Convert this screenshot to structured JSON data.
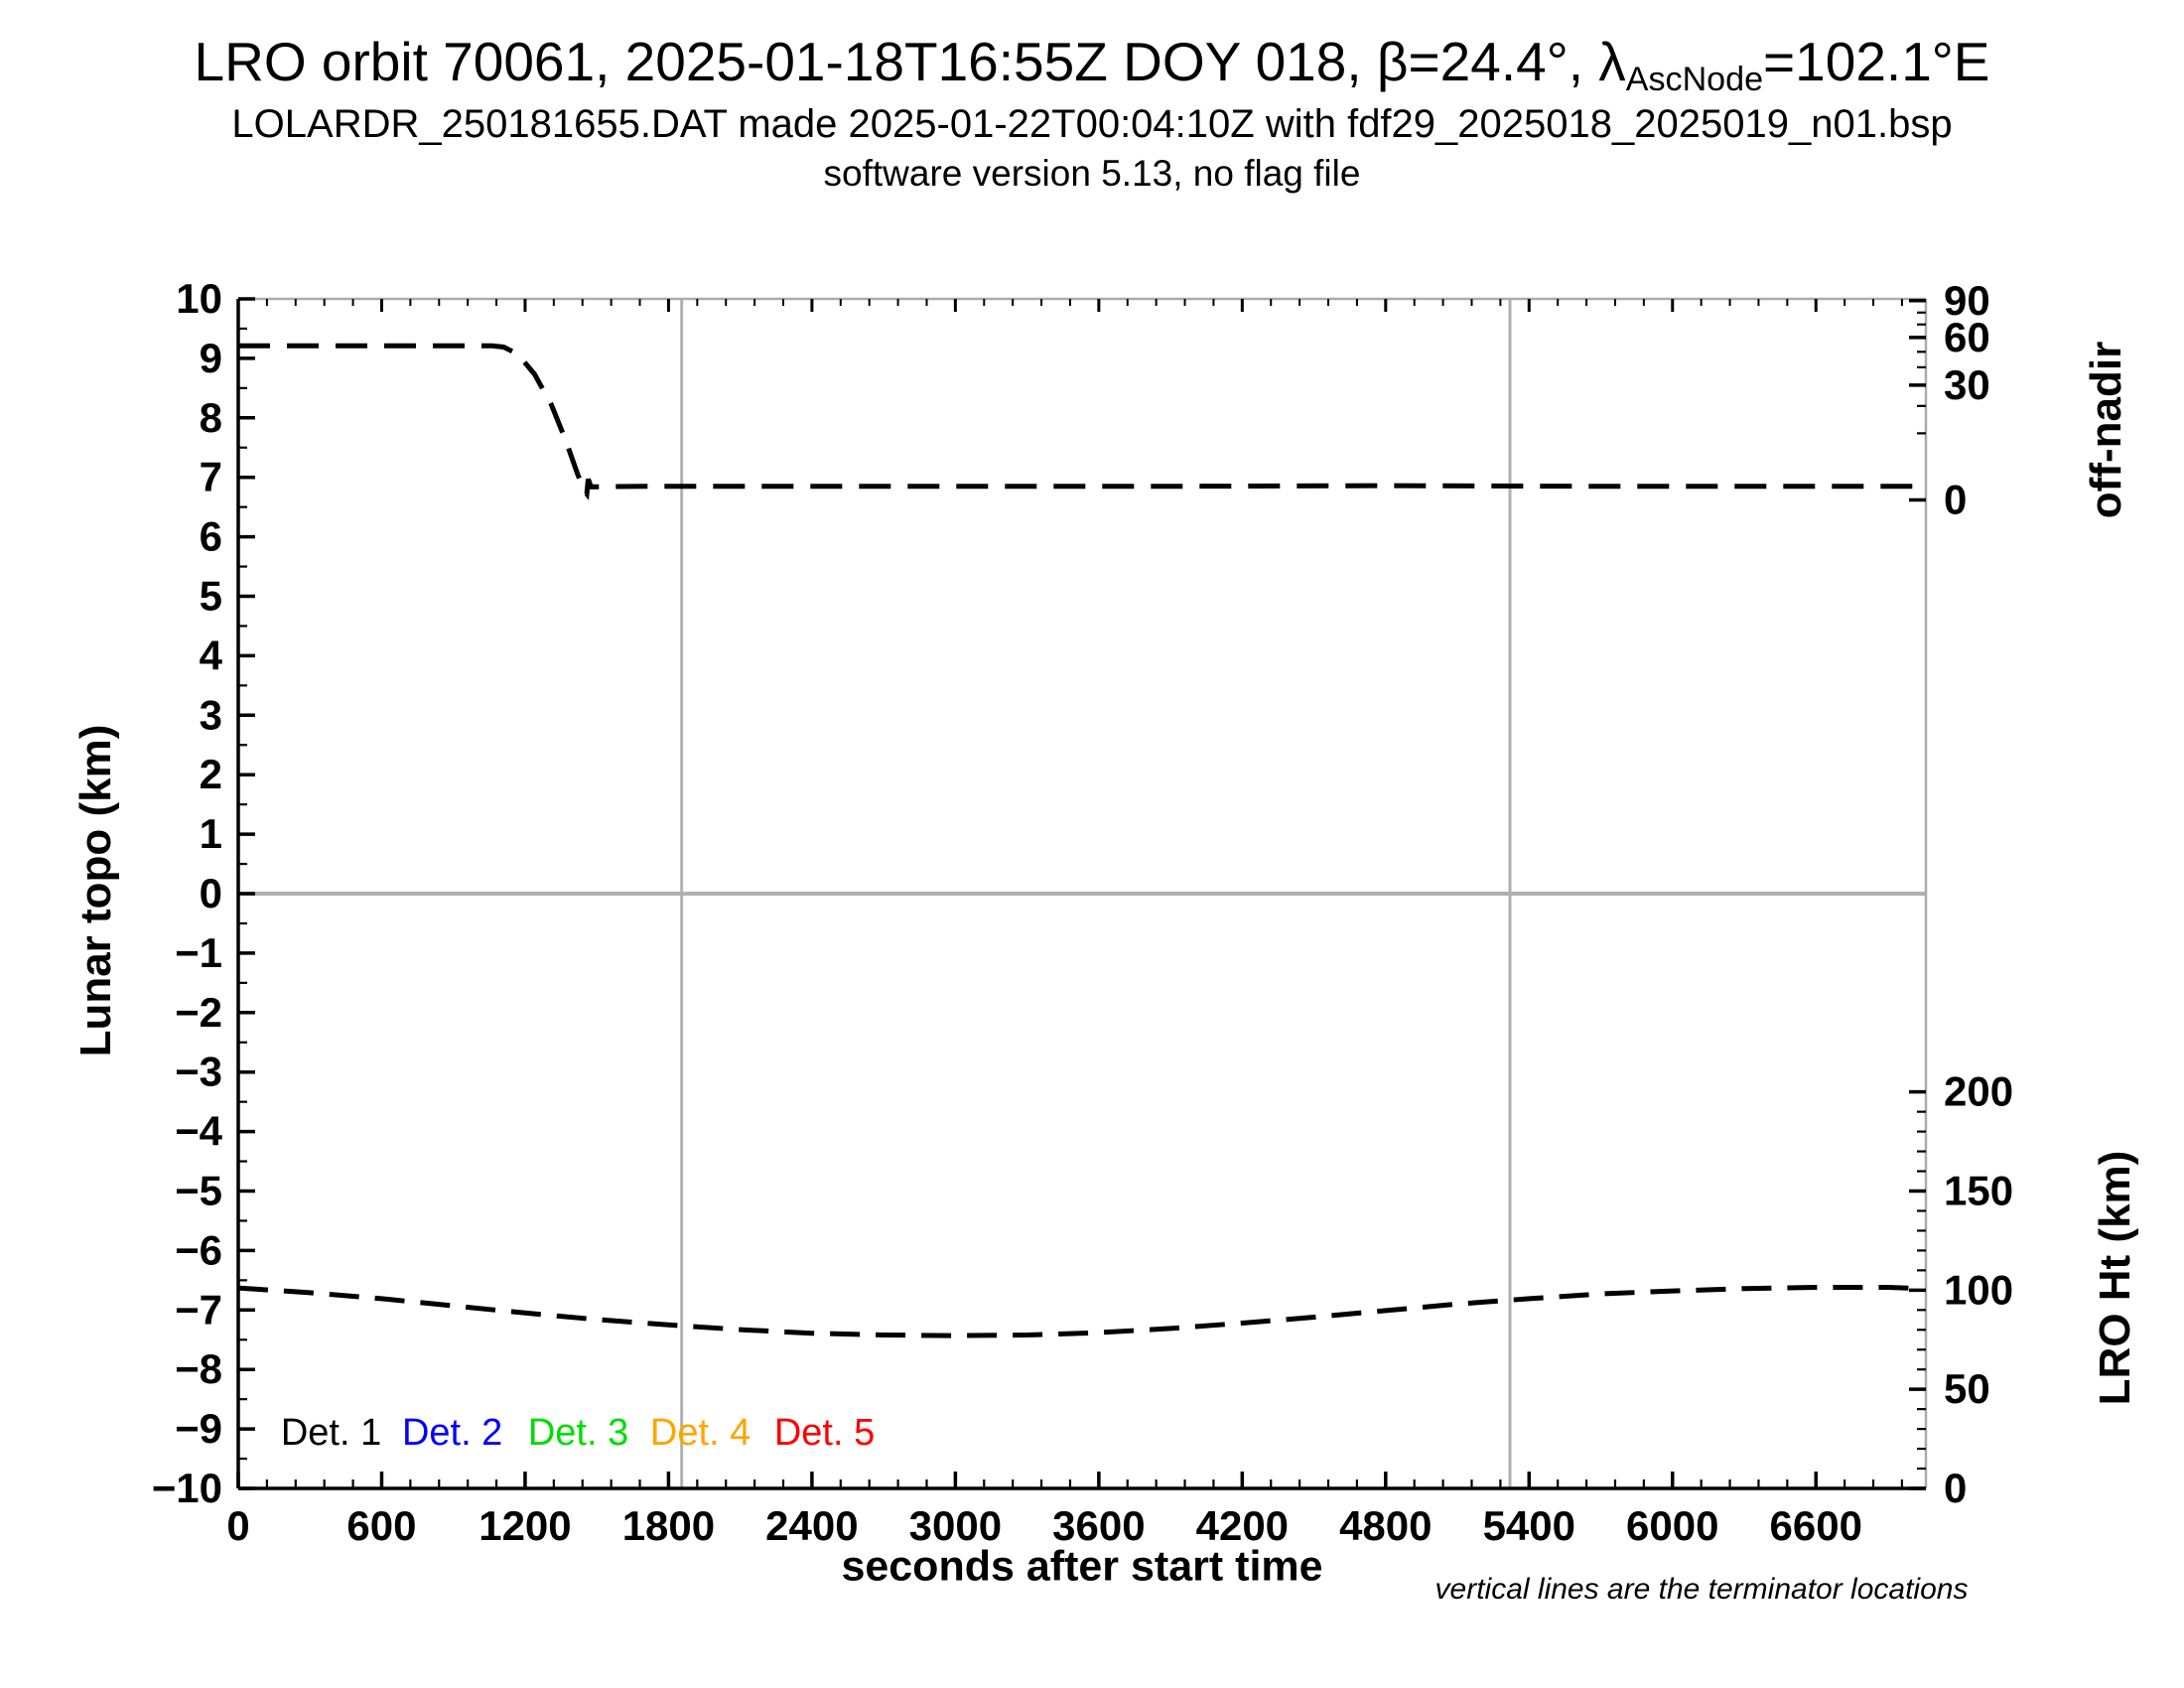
{
  "header": {
    "title_prefix": "LRO orbit 70061, 2025-01-18T16:55Z DOY 018, β=24.4°, λ",
    "title_subscript": "AscNode",
    "title_suffix": "=102.1°E",
    "subtitle": "LOLARDR_250181655.DAT made 2025-01-22T00:04:10Z with fdf29_2025018_2025019_n01.bsp",
    "software_line": "software version 5.13, no flag file"
  },
  "chart_data": {
    "type": "line",
    "x_axis": {
      "label": "seconds after start time",
      "min": 0,
      "max": 7060,
      "major_tick_step": 600,
      "minor_tick_step": 120,
      "tick_labels": [
        0,
        600,
        1200,
        1800,
        2400,
        3000,
        3600,
        4200,
        4800,
        5400,
        6000,
        6600
      ]
    },
    "y_left": {
      "label": "Lunar topo (km)",
      "min": -10,
      "max": 10,
      "major_step": 1,
      "minor_step": 0.5
    },
    "y_right_offnadir": {
      "label": "off-nadir",
      "scale": "sqrt-of-angle",
      "major_ticks": [
        {
          "angle": 90,
          "topo": 9.97
        },
        {
          "angle": 60,
          "topo": 9.35
        },
        {
          "angle": 30,
          "topo": 8.55
        },
        {
          "angle": 0,
          "topo": 6.62
        }
      ],
      "minor_ticks": [
        {
          "angle": 80,
          "topo": 9.77
        },
        {
          "angle": 70,
          "topo": 9.57
        },
        {
          "angle": 50,
          "topo": 9.11
        },
        {
          "angle": 40,
          "topo": 8.85
        },
        {
          "angle": 20,
          "topo": 8.2
        },
        {
          "angle": 10,
          "topo": 7.74
        }
      ]
    },
    "y_right_height": {
      "label": "LRO Ht (km)",
      "km_per_unit": 30,
      "max_km": 200,
      "major_step_km": 50,
      "minor_step_km": 10,
      "tick_labels": [
        0,
        50,
        100,
        150,
        200
      ]
    },
    "reference": {
      "zero_line_topo": 0,
      "terminator_times_sec": [
        1855,
        5320
      ],
      "note": "vertical lines are the terminator locations",
      "line_color": "#b0b0b0"
    },
    "series": [
      {
        "name": "spacecraft off-nadir angle",
        "color": "#000000",
        "dash": "32 17",
        "axis": "off-nadir (right top)",
        "approx_degrees_initial": 54,
        "approx_degrees_final": 0.5,
        "points_topo": [
          [
            0,
            9.21
          ],
          [
            300,
            9.21
          ],
          [
            600,
            9.21
          ],
          [
            900,
            9.21
          ],
          [
            1060,
            9.21
          ],
          [
            1110,
            9.19
          ],
          [
            1170,
            9.07
          ],
          [
            1240,
            8.73
          ],
          [
            1310,
            8.22
          ],
          [
            1370,
            7.62
          ],
          [
            1420,
            7.05
          ],
          [
            1448,
            6.77
          ],
          [
            1458,
            6.72
          ],
          [
            1464,
            6.97
          ],
          [
            1476,
            6.84
          ],
          [
            1700,
            6.85
          ],
          [
            2400,
            6.85
          ],
          [
            3200,
            6.85
          ],
          [
            4000,
            6.85
          ],
          [
            4800,
            6.86
          ],
          [
            5600,
            6.85
          ],
          [
            6400,
            6.85
          ],
          [
            7040,
            6.85
          ]
        ]
      },
      {
        "name": "LRO height above surface",
        "color": "#000000",
        "dash": "30 16",
        "axis": "LRO Ht km (right bottom)",
        "approx_km_start": 101,
        "approx_km_min": 77,
        "approx_km_end": 101,
        "points_topo": [
          [
            0,
            -6.63
          ],
          [
            300,
            -6.71
          ],
          [
            600,
            -6.81
          ],
          [
            900,
            -6.93
          ],
          [
            1200,
            -7.05
          ],
          [
            1500,
            -7.16
          ],
          [
            1800,
            -7.25
          ],
          [
            2100,
            -7.33
          ],
          [
            2400,
            -7.39
          ],
          [
            2700,
            -7.42
          ],
          [
            3000,
            -7.43
          ],
          [
            3300,
            -7.42
          ],
          [
            3600,
            -7.38
          ],
          [
            3900,
            -7.31
          ],
          [
            4200,
            -7.22
          ],
          [
            4500,
            -7.12
          ],
          [
            4800,
            -7.01
          ],
          [
            5100,
            -6.9
          ],
          [
            5400,
            -6.81
          ],
          [
            5700,
            -6.73
          ],
          [
            6000,
            -6.68
          ],
          [
            6300,
            -6.64
          ],
          [
            6600,
            -6.62
          ],
          [
            6900,
            -6.62
          ],
          [
            7040,
            -6.64
          ]
        ]
      }
    ],
    "legend": {
      "y_topo": -9.05,
      "items": [
        {
          "label": "Det. 1",
          "color": "#000000",
          "t": 178
        },
        {
          "label": "Det. 2",
          "color": "#0000ff",
          "t": 685
        },
        {
          "label": "Det. 3",
          "color": "#00dd00",
          "t": 1212
        },
        {
          "label": "Det. 4",
          "color": "#ffa500",
          "t": 1723
        },
        {
          "label": "Det. 5",
          "color": "#ff0000",
          "t": 2242
        }
      ]
    }
  }
}
